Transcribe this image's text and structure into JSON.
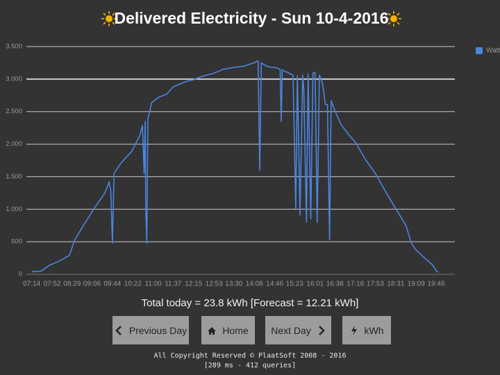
{
  "chart_data": {
    "type": "line",
    "title": "Delivered Electricity - Sun 10-4-2016",
    "x": [
      "07:14",
      "07:32",
      "07:45",
      "08:04",
      "08:24",
      "08:34",
      "08:50",
      "09:10",
      "09:30",
      "09:38",
      "09:41",
      "09:44",
      "09:47",
      "10:00",
      "10:20",
      "10:35",
      "10:40",
      "10:43",
      "10:45",
      "10:46",
      "10:48",
      "10:50",
      "10:52",
      "10:57",
      "11:10",
      "11:25",
      "11:37",
      "12:00",
      "12:15",
      "12:30",
      "12:53",
      "13:10",
      "13:30",
      "13:50",
      "14:00",
      "14:08",
      "14:15",
      "14:18",
      "14:21",
      "14:30",
      "14:40",
      "14:46",
      "14:56",
      "14:58",
      "15:00",
      "15:10",
      "15:20",
      "15:25",
      "15:28",
      "15:33",
      "15:38",
      "15:40",
      "15:45",
      "15:48",
      "15:53",
      "15:57",
      "16:01",
      "16:05",
      "16:09",
      "16:15",
      "16:20",
      "16:24",
      "16:28",
      "16:31",
      "16:38",
      "16:50",
      "17:05",
      "17:16",
      "17:35",
      "17:53",
      "18:15",
      "18:31",
      "18:50",
      "19:00",
      "19:09",
      "19:25",
      "19:40",
      "19:46",
      "19:50"
    ],
    "series": [
      {
        "name": "Watt",
        "color": "#4a86e0",
        "values": [
          40,
          50,
          130,
          200,
          290,
          530,
          750,
          1010,
          1250,
          1420,
          1280,
          480,
          1550,
          1710,
          1890,
          2130,
          2290,
          1550,
          2350,
          1010,
          480,
          2400,
          2450,
          2640,
          2720,
          2770,
          2880,
          2960,
          2990,
          3040,
          3090,
          3150,
          3180,
          3200,
          3230,
          3250,
          3280,
          1600,
          3250,
          3200,
          3180,
          3180,
          3150,
          2350,
          3140,
          3100,
          3060,
          1010,
          3050,
          910,
          3060,
          2830,
          800,
          3080,
          850,
          3090,
          3100,
          800,
          3060,
          2930,
          2610,
          2610,
          530,
          2670,
          2510,
          2290,
          2130,
          2030,
          1760,
          1550,
          1230,
          1010,
          750,
          480,
          370,
          250,
          140,
          60,
          30
        ]
      }
    ],
    "xlim": [
      "07:04",
      "20:21"
    ],
    "xticks": [
      "07:14",
      "07:52",
      "08:29",
      "09:06",
      "09:44",
      "10:22",
      "11:00",
      "11:37",
      "12:15",
      "12:53",
      "13:30",
      "14:08",
      "14:46",
      "15:23",
      "16:01",
      "16:38",
      "17:16",
      "17:53",
      "18:31",
      "19:09",
      "19:46"
    ],
    "ylim": [
      0,
      3500
    ],
    "yticks": [
      0,
      500,
      {
        "value": 1000,
        "label": "1.000"
      },
      {
        "value": 1500,
        "label": "1.500"
      },
      {
        "value": 2000,
        "label": "2.000"
      },
      {
        "value": 2500,
        "label": "2.500"
      },
      {
        "value": 3000,
        "label": "3.000"
      },
      {
        "value": 3500,
        "label": "3.500"
      }
    ],
    "grid": true,
    "legend": "top-right"
  },
  "total_text": "Total today = 23.8 kWh [Forecast = 12.21 kWh]",
  "buttons": [
    "Previous Day",
    "Home",
    "Next Day",
    "kWh"
  ],
  "footer": [
    "All Copyright Reserved © PlaatSoft 2008 - 2016",
    "[289 ms - 412 queries]"
  ]
}
